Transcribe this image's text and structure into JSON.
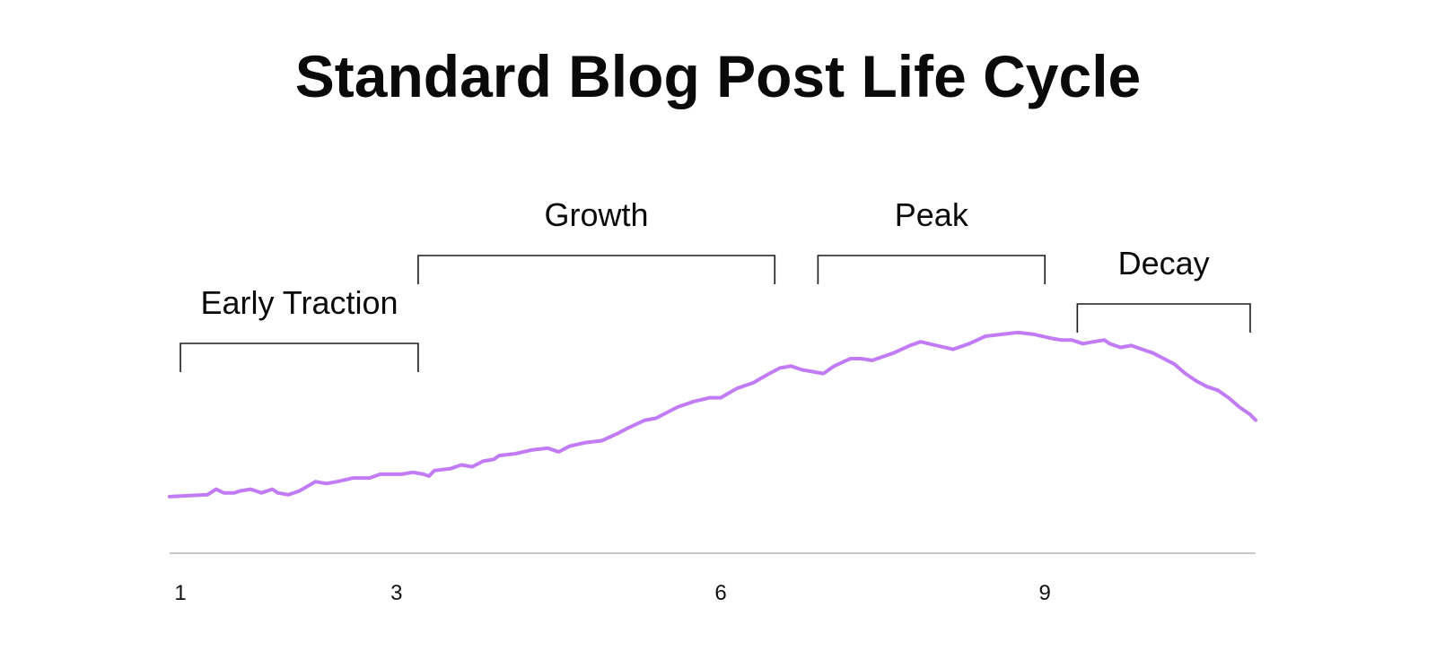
{
  "chart_data": {
    "type": "line",
    "title": "Standard Blog Post Life Cycle",
    "xlabel": "",
    "ylabel": "",
    "x_ticks": [
      1,
      3,
      6,
      9
    ],
    "xlim": [
      0.9,
      10.95
    ],
    "ylim": [
      0,
      100
    ],
    "grid": false,
    "legend": "none",
    "colors": {
      "line": "#c17bf5",
      "axis": "#c8c8c8",
      "bracket": "#1a1a1a",
      "text": "#0a0a0a"
    },
    "phases": [
      {
        "label": "Early Traction",
        "x_start": 1.0,
        "x_end": 3.2
      },
      {
        "label": "Growth",
        "x_start": 3.2,
        "x_end": 6.5
      },
      {
        "label": "Peak",
        "x_start": 6.9,
        "x_end": 9.0
      },
      {
        "label": "Decay",
        "x_start": 9.3,
        "x_end": 10.9
      }
    ],
    "series": [
      {
        "points": [
          [
            0.9,
            14
          ],
          [
            1.25,
            15
          ],
          [
            1.33,
            18
          ],
          [
            1.4,
            16
          ],
          [
            1.5,
            16
          ],
          [
            1.55,
            17
          ],
          [
            1.65,
            18
          ],
          [
            1.75,
            16
          ],
          [
            1.85,
            18
          ],
          [
            1.9,
            16
          ],
          [
            2.0,
            15
          ],
          [
            2.1,
            17
          ],
          [
            2.25,
            22
          ],
          [
            2.35,
            21
          ],
          [
            2.45,
            22
          ],
          [
            2.6,
            24
          ],
          [
            2.75,
            24
          ],
          [
            2.85,
            26
          ],
          [
            2.95,
            26
          ],
          [
            3.05,
            26
          ],
          [
            3.15,
            27
          ],
          [
            3.25,
            26
          ],
          [
            3.3,
            25
          ],
          [
            3.35,
            28
          ],
          [
            3.5,
            29
          ],
          [
            3.6,
            31
          ],
          [
            3.7,
            30
          ],
          [
            3.8,
            33
          ],
          [
            3.9,
            34
          ],
          [
            3.95,
            36
          ],
          [
            4.1,
            37
          ],
          [
            4.25,
            39
          ],
          [
            4.4,
            40
          ],
          [
            4.5,
            38
          ],
          [
            4.6,
            41
          ],
          [
            4.75,
            43
          ],
          [
            4.9,
            44
          ],
          [
            5.05,
            48
          ],
          [
            5.15,
            51
          ],
          [
            5.3,
            55
          ],
          [
            5.4,
            56
          ],
          [
            5.6,
            62
          ],
          [
            5.75,
            65
          ],
          [
            5.9,
            67
          ],
          [
            6.0,
            67
          ],
          [
            6.15,
            72
          ],
          [
            6.3,
            75
          ],
          [
            6.45,
            80
          ],
          [
            6.55,
            83
          ],
          [
            6.65,
            84
          ],
          [
            6.75,
            82
          ],
          [
            6.85,
            81
          ],
          [
            6.95,
            80
          ],
          [
            7.05,
            84
          ],
          [
            7.2,
            88
          ],
          [
            7.3,
            88
          ],
          [
            7.4,
            87
          ],
          [
            7.5,
            89
          ],
          [
            7.6,
            91
          ],
          [
            7.75,
            95
          ],
          [
            7.85,
            97
          ],
          [
            8.0,
            95
          ],
          [
            8.15,
            93
          ],
          [
            8.3,
            96
          ],
          [
            8.45,
            100
          ],
          [
            8.6,
            101
          ],
          [
            8.75,
            102
          ],
          [
            8.9,
            101
          ],
          [
            9.05,
            99
          ],
          [
            9.15,
            98
          ],
          [
            9.25,
            98
          ],
          [
            9.35,
            96
          ],
          [
            9.45,
            97
          ],
          [
            9.55,
            98
          ],
          [
            9.6,
            96
          ],
          [
            9.7,
            94
          ],
          [
            9.8,
            95
          ],
          [
            9.9,
            93
          ],
          [
            10.0,
            91
          ],
          [
            10.1,
            88
          ],
          [
            10.2,
            85
          ],
          [
            10.3,
            80
          ],
          [
            10.4,
            76
          ],
          [
            10.5,
            73
          ],
          [
            10.6,
            71
          ],
          [
            10.7,
            67
          ],
          [
            10.8,
            62
          ],
          [
            10.9,
            58
          ],
          [
            10.95,
            55
          ]
        ]
      }
    ]
  }
}
